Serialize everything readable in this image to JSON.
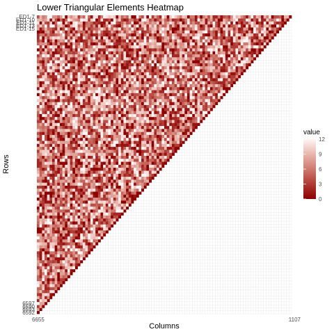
{
  "chart_data": {
    "type": "heatmap",
    "title": "Lower Triangular Elements Heatmap",
    "xlabel": "Columns",
    "ylabel": "Rows",
    "legend": {
      "title": "value",
      "ticks": [
        0,
        3,
        6,
        9,
        12
      ],
      "range": [
        0,
        12
      ],
      "position": "right",
      "low_color": "#8b0000",
      "high_color": "#fff5f5"
    },
    "grid": true,
    "grid_color": "#ebebeb",
    "matrix": {
      "size": 100,
      "shape": "lower-triangular",
      "diagonal_value": 0,
      "values_note": "Random values 0-12 below diagonal"
    },
    "row_tick_labels_top": [
      "ED1-7",
      "ED1-10",
      "ED1-11",
      "ED1-13",
      "ED1-15"
    ],
    "row_tick_labels_bottom": [
      "6597",
      "6590",
      "6593",
      "6592"
    ],
    "x_tick_label_left": "6655",
    "x_tick_label_right": "1107"
  }
}
